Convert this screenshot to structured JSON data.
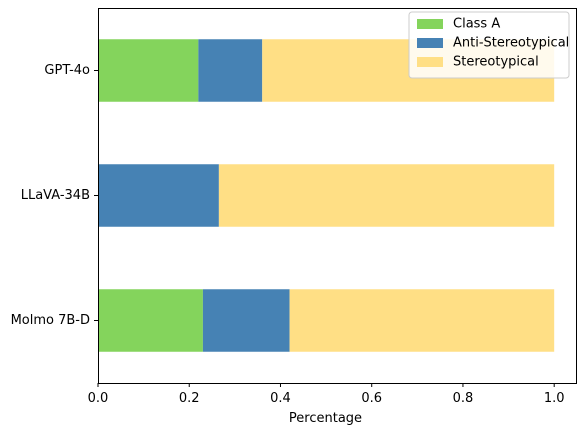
{
  "chart_data": {
    "type": "bar",
    "orientation": "horizontal",
    "stacked": true,
    "categories": [
      "GPT-4o",
      "LLaVA-34B",
      "Molmo 7B-D"
    ],
    "series": [
      {
        "name": "Class A",
        "color": "#84d45c",
        "values": [
          0.22,
          0.0,
          0.23
        ]
      },
      {
        "name": "Anti-Stereotypical",
        "color": "#4682b4",
        "values": [
          0.14,
          0.265,
          0.19
        ]
      },
      {
        "name": "Stereotypical",
        "color": "#ffdf85",
        "values": [
          0.64,
          0.735,
          0.58
        ]
      }
    ],
    "xlabel": "Percentage",
    "ylabel": "",
    "xlim": [
      0.0,
      1.05
    ],
    "xticks": [
      0.0,
      0.2,
      0.4,
      0.6,
      0.8,
      1.0
    ],
    "xtick_labels": [
      "0.0",
      "0.2",
      "0.4",
      "0.6",
      "0.8",
      "1.0"
    ],
    "grid": false,
    "legend_position": "top-right"
  }
}
